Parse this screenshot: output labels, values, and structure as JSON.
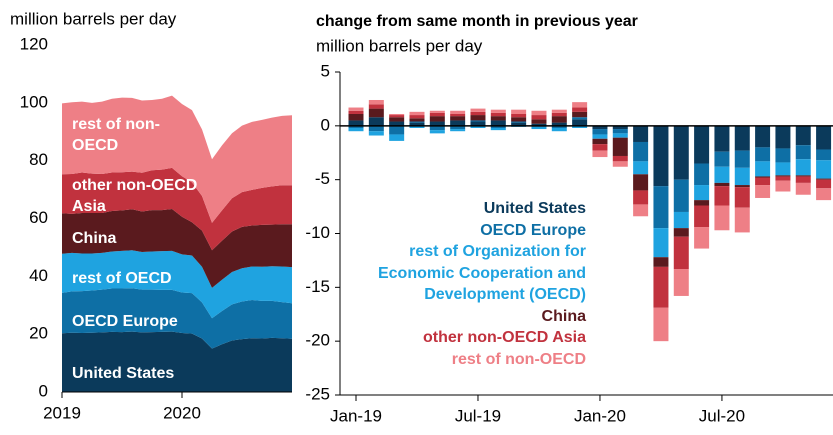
{
  "chart_data": [
    {
      "type": "area",
      "ylabel": "million barrels per day",
      "categories": [
        "2019",
        null,
        null,
        null,
        null,
        null,
        null,
        null,
        null,
        null,
        null,
        null,
        "2020",
        null,
        null,
        null,
        null,
        null,
        null,
        null,
        null,
        null,
        null,
        null
      ],
      "ylim": [
        0,
        120
      ],
      "yticks": [
        0,
        20,
        40,
        60,
        80,
        100,
        120
      ],
      "series": [
        {
          "name": "United States",
          "color": "#0b3a5b",
          "values": [
            20.3,
            20.5,
            20.4,
            20.5,
            20.6,
            20.8,
            20.7,
            20.9,
            20.6,
            20.7,
            20.8,
            20.9,
            20.4,
            20.2,
            18.5,
            15.0,
            16.5,
            17.8,
            18.3,
            18.6,
            18.5,
            18.7,
            18.6,
            18.4
          ]
        },
        {
          "name": "OECD Europe",
          "color": "#0e6fa5",
          "values": [
            14.0,
            14.3,
            14.5,
            14.6,
            14.8,
            15.0,
            15.1,
            15.0,
            14.8,
            14.7,
            14.5,
            14.4,
            14.0,
            14.0,
            12.5,
            10.5,
            11.5,
            12.5,
            13.0,
            13.2,
            13.0,
            12.8,
            12.5,
            12.3
          ]
        },
        {
          "name": "rest of OECD",
          "color": "#1fa3e0",
          "values": [
            13.5,
            13.3,
            13.0,
            12.8,
            12.7,
            12.8,
            13.0,
            13.1,
            13.0,
            13.2,
            13.4,
            13.5,
            13.2,
            13.0,
            12.3,
            10.5,
            10.8,
            11.2,
            11.5,
            11.6,
            11.8,
            12.0,
            12.3,
            12.5
          ]
        },
        {
          "name": "China",
          "color": "#5a1a1e",
          "values": [
            14.0,
            13.5,
            14.0,
            14.0,
            13.8,
            14.0,
            14.0,
            14.2,
            14.0,
            14.3,
            14.2,
            14.5,
            13.0,
            11.5,
            12.5,
            13.0,
            13.5,
            14.0,
            14.3,
            14.2,
            14.5,
            14.4,
            14.6,
            14.8
          ]
        },
        {
          "name": "other non-OECD Asia",
          "color": "#c1323e",
          "values": [
            13.5,
            13.8,
            14.0,
            13.6,
            13.5,
            13.3,
            13.2,
            13.0,
            13.4,
            13.8,
            14.0,
            14.2,
            14.0,
            13.8,
            12.0,
            9.5,
            10.5,
            11.5,
            12.0,
            12.3,
            12.8,
            13.2,
            13.5,
            13.5
          ]
        },
        {
          "name": "rest of non-OECD",
          "color": "#ee7f86",
          "values": [
            24.5,
            24.8,
            24.5,
            24.5,
            25.0,
            25.5,
            25.8,
            25.5,
            25.0,
            24.3,
            24.5,
            25.0,
            25.0,
            25.0,
            23.0,
            22.0,
            22.5,
            22.5,
            23.0,
            23.5,
            23.5,
            23.8,
            24.0,
            24.2
          ]
        }
      ]
    },
    {
      "type": "bar",
      "title": "change from same month in previous year",
      "ylabel": "million barrels per day",
      "categories": [
        "Jan-19",
        null,
        null,
        null,
        null,
        null,
        "Jul-19",
        null,
        null,
        null,
        null,
        null,
        "Jan-20",
        null,
        null,
        null,
        null,
        null,
        "Jul-20",
        null,
        null,
        null,
        null,
        null
      ],
      "ylim": [
        -25,
        5
      ],
      "yticks": [
        -25,
        -20,
        -15,
        -10,
        -5,
        0,
        5
      ],
      "series": [
        {
          "name": "United States",
          "color": "#0b3a5b",
          "values": [
            0.5,
            0.8,
            0.4,
            0.3,
            0.4,
            0.5,
            0.4,
            0.5,
            0.3,
            0.2,
            0.3,
            0.6,
            -0.3,
            -0.3,
            -1.5,
            -5.6,
            -5.0,
            -3.5,
            -2.4,
            -2.3,
            -2.0,
            -2.1,
            -1.8,
            -2.2
          ]
        },
        {
          "name": "OECD Europe",
          "color": "#0e6fa5",
          "values": [
            -0.2,
            -0.5,
            -0.8,
            0.1,
            -0.4,
            -0.3,
            0.1,
            -0.2,
            0.1,
            -0.1,
            -0.2,
            0.2,
            -0.5,
            -0.4,
            -1.8,
            -3.9,
            -3.0,
            -2.0,
            -1.4,
            -1.6,
            -1.3,
            -1.3,
            -1.3,
            -1.0
          ]
        },
        {
          "name": "rest of Organization for Economic Cooperation and Development (OECD)",
          "color": "#1fa3e0",
          "values": [
            -0.3,
            -0.4,
            -0.6,
            -0.2,
            -0.3,
            -0.2,
            -0.2,
            -0.2,
            -0.1,
            -0.2,
            -0.3,
            -0.2,
            -0.4,
            -0.4,
            -1.2,
            -2.7,
            -1.5,
            -1.4,
            -1.5,
            -1.6,
            -1.4,
            -1.2,
            -1.5,
            -1.7
          ]
        },
        {
          "name": "China",
          "color": "#5a1a1e",
          "values": [
            0.6,
            0.8,
            0.4,
            0.3,
            0.5,
            0.4,
            0.5,
            0.4,
            0.4,
            0.4,
            0.6,
            0.5,
            -0.5,
            -1.7,
            -1.5,
            -0.9,
            -0.8,
            -0.5,
            -0.3,
            -0.2,
            -0.1,
            -0.1,
            -0.1,
            -0.1
          ]
        },
        {
          "name": "other non-OECD Asia",
          "color": "#c1323e",
          "values": [
            0.3,
            0.4,
            0.2,
            0.3,
            0.3,
            0.2,
            0.3,
            0.3,
            0.3,
            0.4,
            0.3,
            0.4,
            -0.6,
            -0.5,
            -1.3,
            -3.8,
            -3.0,
            -2.0,
            -1.8,
            -1.9,
            -0.7,
            -0.4,
            -0.6,
            -0.8
          ]
        },
        {
          "name": "rest of non-OECD",
          "color": "#ee7f86",
          "values": [
            0.3,
            0.4,
            0.1,
            0.3,
            0.2,
            0.3,
            0.3,
            0.3,
            0.4,
            0.4,
            0.3,
            0.5,
            -0.6,
            -0.5,
            -1.1,
            -3.1,
            -2.5,
            -2.0,
            -2.3,
            -2.3,
            -1.2,
            -1.0,
            -1.1,
            -1.1
          ]
        }
      ]
    }
  ]
}
